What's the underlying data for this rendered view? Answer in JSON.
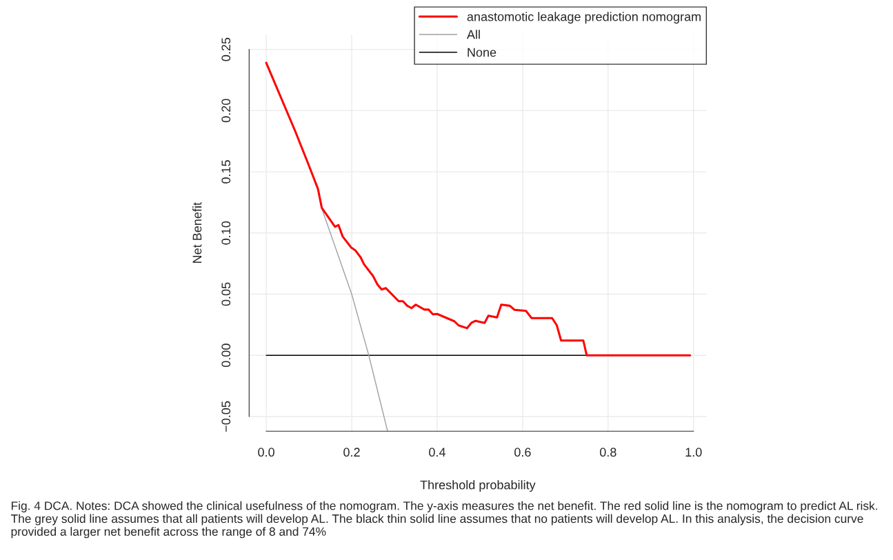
{
  "chart_data": {
    "type": "line",
    "xlabel": "Threshold probability",
    "ylabel": "Net Benefit",
    "xlim": [
      -0.04,
      1.03
    ],
    "ylim": [
      -0.062,
      0.262
    ],
    "xticks": [
      {
        "value": 0,
        "label": "0.0"
      },
      {
        "value": 0.2,
        "label": "0.2"
      },
      {
        "value": 0.4,
        "label": "0.4"
      },
      {
        "value": 0.6,
        "label": "0.6"
      },
      {
        "value": 0.8,
        "label": "0.8"
      },
      {
        "value": 1,
        "label": "1.0"
      }
    ],
    "yticks": [
      {
        "value": -0.05,
        "label": "−0.05"
      },
      {
        "value": 0,
        "label": "0.00"
      },
      {
        "value": 0.05,
        "label": "0.05"
      },
      {
        "value": 0.1,
        "label": "0.10"
      },
      {
        "value": 0.15,
        "label": "0.15"
      },
      {
        "value": 0.2,
        "label": "0.20"
      },
      {
        "value": 0.25,
        "label": "0.25"
      }
    ],
    "grid": true,
    "legend": "top right",
    "line_style": "solid",
    "series": [
      {
        "name": "anastomotic leakage prediction nomogram",
        "color": "#ff0000",
        "x": [
          0,
          0.068,
          0.1,
          0.121,
          0.13,
          0.161,
          0.169,
          0.179,
          0.199,
          0.209,
          0.221,
          0.229,
          0.25,
          0.26,
          0.27,
          0.28,
          0.31,
          0.32,
          0.33,
          0.34,
          0.35,
          0.37,
          0.38,
          0.39,
          0.4,
          0.44,
          0.45,
          0.47,
          0.48,
          0.49,
          0.511,
          0.52,
          0.54,
          0.55,
          0.57,
          0.581,
          0.608,
          0.621,
          0.669,
          0.68,
          0.69,
          0.742,
          0.75,
          0.992
        ],
        "values": [
          0.239,
          0.183,
          0.155,
          0.136,
          0.1205,
          0.105,
          0.1065,
          0.097,
          0.088,
          0.0856,
          0.08,
          0.0743,
          0.0648,
          0.058,
          0.0538,
          0.0549,
          0.0442,
          0.0442,
          0.0405,
          0.0386,
          0.0414,
          0.0374,
          0.0374,
          0.0335,
          0.0338,
          0.0279,
          0.0245,
          0.0222,
          0.0265,
          0.0282,
          0.0265,
          0.0324,
          0.031,
          0.0414,
          0.0405,
          0.0372,
          0.0363,
          0.0304,
          0.0304,
          0.0245,
          0.0121,
          0.0121,
          0,
          0
        ]
      },
      {
        "name": "All",
        "color": "#a0a0a0",
        "x": [
          0.13,
          0.2,
          0.24,
          0.284
        ],
        "values": [
          0.12,
          0.05,
          0,
          -0.062
        ]
      },
      {
        "name": "None",
        "color": "#000000",
        "x": [
          0,
          0.992
        ],
        "values": [
          0,
          0
        ]
      }
    ],
    "annotations": [
      "Fig. 4 DCA. Notes: DCA showed the clinical usefulness of the nomogram. The y-axis measures the net benefit. The red solid line is the nomogram to predict AL risk. The grey solid line assumes that all patients will develop AL. The black thin solid line assumes that no patients will develop AL. In this analysis, the decision curve provided a larger net benefit across the range of 8 and 74%"
    ]
  }
}
